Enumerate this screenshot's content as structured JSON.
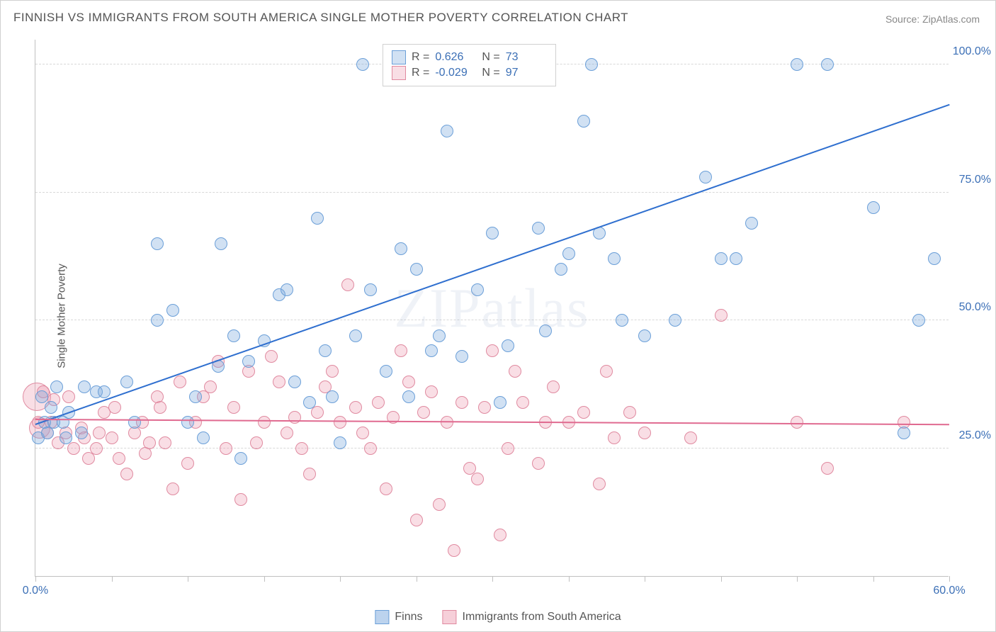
{
  "title": "FINNISH VS IMMIGRANTS FROM SOUTH AMERICA SINGLE MOTHER POVERTY CORRELATION CHART",
  "source": "Source: ZipAtlas.com",
  "y_axis_label": "Single Mother Poverty",
  "watermark": "ZIPatlas",
  "chart": {
    "type": "scatter",
    "xlim": [
      0,
      60
    ],
    "ylim": [
      0,
      105
    ],
    "x_ticks": [
      0,
      5,
      10,
      15,
      20,
      25,
      30,
      35,
      40,
      45,
      50,
      55,
      60
    ],
    "x_tick_labels": {
      "0": "0.0%",
      "60": "60.0%"
    },
    "y_ticks": [
      25,
      50,
      75,
      100
    ],
    "y_tick_labels": {
      "25": "25.0%",
      "50": "50.0%",
      "75": "75.0%",
      "100": "100.0%"
    },
    "background_color": "#ffffff",
    "grid_color": "#d8d8d8",
    "axis_color": "#c0c0c0",
    "tick_label_color": "#3b6fb6",
    "marker_radius": 9,
    "marker_stroke_width": 1.5,
    "series": [
      {
        "name": "Finns",
        "fill_color": "rgba(122,168,222,0.35)",
        "stroke_color": "#6b9fd8",
        "r_label": "R =",
        "r_value": "0.626",
        "n_label": "N =",
        "n_value": "73",
        "regression": {
          "x0": 0,
          "y0": 29.5,
          "x1": 60,
          "y1": 92,
          "color": "#2f6fcf",
          "width": 2
        },
        "points": [
          [
            0.2,
            27
          ],
          [
            0.4,
            35
          ],
          [
            0.6,
            30
          ],
          [
            0.8,
            28
          ],
          [
            1,
            33
          ],
          [
            1.2,
            30
          ],
          [
            1.4,
            37
          ],
          [
            1.8,
            30
          ],
          [
            2,
            27
          ],
          [
            2.2,
            32
          ],
          [
            3,
            28
          ],
          [
            3.2,
            37
          ],
          [
            4,
            36
          ],
          [
            4.5,
            36
          ],
          [
            6,
            38
          ],
          [
            6.5,
            30
          ],
          [
            8,
            50
          ],
          [
            8,
            65
          ],
          [
            9,
            52
          ],
          [
            10,
            30
          ],
          [
            10.5,
            35
          ],
          [
            11,
            27
          ],
          [
            12,
            41
          ],
          [
            12.2,
            65
          ],
          [
            13,
            47
          ],
          [
            13.5,
            23
          ],
          [
            14,
            42
          ],
          [
            15,
            46
          ],
          [
            16,
            55
          ],
          [
            16.5,
            56
          ],
          [
            17,
            38
          ],
          [
            18,
            34
          ],
          [
            18.5,
            70
          ],
          [
            19,
            44
          ],
          [
            19.5,
            35
          ],
          [
            20,
            26
          ],
          [
            21,
            47
          ],
          [
            21.5,
            100
          ],
          [
            22,
            56
          ],
          [
            23,
            40
          ],
          [
            24,
            64
          ],
          [
            24.5,
            35
          ],
          [
            25,
            60
          ],
          [
            26,
            44
          ],
          [
            26.5,
            47
          ],
          [
            27,
            87
          ],
          [
            28,
            43
          ],
          [
            29,
            56
          ],
          [
            30,
            67
          ],
          [
            30.5,
            34
          ],
          [
            31,
            45
          ],
          [
            32,
            100
          ],
          [
            33,
            68
          ],
          [
            33.5,
            48
          ],
          [
            34.5,
            60
          ],
          [
            35,
            63
          ],
          [
            36,
            89
          ],
          [
            36.5,
            100
          ],
          [
            37,
            67
          ],
          [
            38,
            62
          ],
          [
            38.5,
            50
          ],
          [
            40,
            47
          ],
          [
            42,
            50
          ],
          [
            44,
            78
          ],
          [
            45,
            62
          ],
          [
            46,
            62
          ],
          [
            47,
            69
          ],
          [
            50,
            100
          ],
          [
            52,
            100
          ],
          [
            55,
            72
          ],
          [
            57,
            28
          ],
          [
            58,
            50
          ],
          [
            59,
            62
          ]
        ]
      },
      {
        "name": "Immigrants from South America",
        "fill_color": "rgba(238,160,180,0.35)",
        "stroke_color": "#e08aa0",
        "r_label": "R =",
        "r_value": "-0.029",
        "n_label": "N =",
        "n_value": "97",
        "regression": {
          "x0": 0,
          "y0": 30.5,
          "x1": 60,
          "y1": 29.5,
          "color": "#e06a90",
          "width": 2
        },
        "points": [
          [
            0.2,
            30
          ],
          [
            0.5,
            36
          ],
          [
            0.8,
            28
          ],
          [
            1,
            30
          ],
          [
            1.2,
            34.5
          ],
          [
            1.5,
            26
          ],
          [
            2,
            28
          ],
          [
            2.2,
            35
          ],
          [
            2.5,
            25
          ],
          [
            3,
            29
          ],
          [
            3.2,
            27
          ],
          [
            3.5,
            23
          ],
          [
            4,
            25
          ],
          [
            4.2,
            28
          ],
          [
            4.5,
            32
          ],
          [
            5,
            27
          ],
          [
            5.2,
            33
          ],
          [
            5.5,
            23
          ],
          [
            6,
            20
          ],
          [
            6.5,
            28
          ],
          [
            7,
            30
          ],
          [
            7.2,
            24
          ],
          [
            7.5,
            26
          ],
          [
            8,
            35
          ],
          [
            8.2,
            33
          ],
          [
            8.5,
            26
          ],
          [
            9,
            17
          ],
          [
            9.5,
            38
          ],
          [
            10,
            22
          ],
          [
            10.5,
            30
          ],
          [
            11,
            35
          ],
          [
            11.5,
            37
          ],
          [
            12,
            42
          ],
          [
            12.5,
            25
          ],
          [
            13,
            33
          ],
          [
            13.5,
            15
          ],
          [
            14,
            40
          ],
          [
            14.5,
            26
          ],
          [
            15,
            30
          ],
          [
            15.5,
            43
          ],
          [
            16,
            38
          ],
          [
            16.5,
            28
          ],
          [
            17,
            31
          ],
          [
            17.5,
            25
          ],
          [
            18,
            20
          ],
          [
            18.5,
            32
          ],
          [
            19,
            37
          ],
          [
            19.5,
            40
          ],
          [
            20,
            30
          ],
          [
            20.5,
            57
          ],
          [
            21,
            33
          ],
          [
            21.5,
            28
          ],
          [
            22,
            25
          ],
          [
            22.5,
            34
          ],
          [
            23,
            17
          ],
          [
            23.5,
            31
          ],
          [
            24,
            44
          ],
          [
            24.5,
            38
          ],
          [
            25,
            11
          ],
          [
            25.5,
            32
          ],
          [
            26,
            36
          ],
          [
            26.5,
            14
          ],
          [
            27,
            30
          ],
          [
            27.5,
            5
          ],
          [
            28,
            34
          ],
          [
            28.5,
            21
          ],
          [
            29,
            19
          ],
          [
            29.5,
            33
          ],
          [
            30,
            44
          ],
          [
            30.5,
            8
          ],
          [
            31,
            25
          ],
          [
            31.5,
            40
          ],
          [
            32,
            34
          ],
          [
            33,
            22
          ],
          [
            33.5,
            30
          ],
          [
            34,
            37
          ],
          [
            35,
            30
          ],
          [
            36,
            32
          ],
          [
            37,
            18
          ],
          [
            37.5,
            40
          ],
          [
            38,
            27
          ],
          [
            39,
            32
          ],
          [
            40,
            28
          ],
          [
            43,
            27
          ],
          [
            45,
            51
          ],
          [
            50,
            30
          ],
          [
            52,
            21
          ],
          [
            57,
            30
          ]
        ],
        "big_points": [
          [
            0.1,
            35,
            20
          ],
          [
            0.3,
            29,
            15
          ]
        ]
      }
    ]
  },
  "legend_bottom": [
    {
      "label": "Finns",
      "fill": "rgba(122,168,222,0.5)",
      "stroke": "#6b9fd8"
    },
    {
      "label": "Immigrants from South America",
      "fill": "rgba(238,160,180,0.5)",
      "stroke": "#e08aa0"
    }
  ]
}
